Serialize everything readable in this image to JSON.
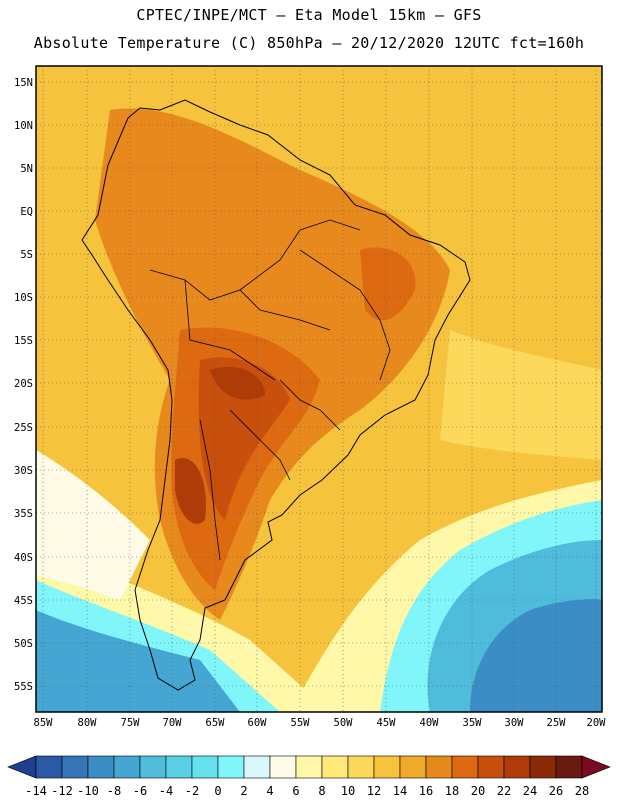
{
  "header": {
    "line1": "CPTEC/INPE/MCT –  Eta Model 15km – GFS",
    "line2": "Absolute Temperature (C) 850hPa – 20/12/2020 12UTC fct=160h"
  },
  "axes": {
    "lat_labels": [
      "15N",
      "10N",
      "5N",
      "EQ",
      "5S",
      "10S",
      "15S",
      "20S",
      "25S",
      "30S",
      "35S",
      "40S",
      "45S",
      "50S",
      "55S"
    ],
    "lon_labels": [
      "85W",
      "80W",
      "75W",
      "70W",
      "65W",
      "60W",
      "55W",
      "50W",
      "45W",
      "40W",
      "35W",
      "30W",
      "25W",
      "20W"
    ]
  },
  "colorbar": {
    "labels": [
      "-14",
      "-12",
      "-10",
      "-8",
      "-6",
      "-4",
      "-2",
      "0",
      "2",
      "4",
      "6",
      "8",
      "10",
      "12",
      "14",
      "16",
      "18",
      "20",
      "22",
      "24",
      "26",
      "28"
    ],
    "colors": [
      "#1f3f8f",
      "#2a5aa6",
      "#3574b6",
      "#3b8dc6",
      "#45a6d4",
      "#4fbcdc",
      "#5ad0e4",
      "#66e2ee",
      "#80f6fa",
      "#d8f6fc",
      "#fffbe6",
      "#fff8a8",
      "#ffe97a",
      "#fcd95a",
      "#f6c33c",
      "#f0a92a",
      "#e8891e",
      "#dd6a10",
      "#c84f0c",
      "#ae3b08",
      "#8c2a08",
      "#6a1a10"
    ]
  },
  "map": {
    "region": "South America",
    "variable": "Absolute Temperature (C) 850hPa",
    "background_color": "#f6c33c"
  }
}
